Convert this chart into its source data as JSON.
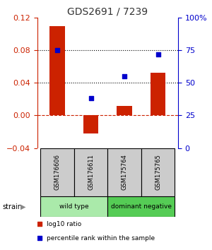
{
  "title": "GDS2691 / 7239",
  "samples": [
    "GSM176606",
    "GSM176611",
    "GSM175764",
    "GSM175765"
  ],
  "log10_ratio": [
    0.109,
    -0.022,
    0.012,
    0.052
  ],
  "percentile_rank": [
    75,
    38,
    55,
    72
  ],
  "ylim_left": [
    -0.04,
    0.12
  ],
  "ylim_right": [
    0,
    100
  ],
  "yticks_left": [
    -0.04,
    0,
    0.04,
    0.08,
    0.12
  ],
  "yticks_right": [
    0,
    25,
    50,
    75,
    100
  ],
  "ytick_labels_right": [
    "0",
    "25",
    "50",
    "75",
    "100%"
  ],
  "hlines_dotted": [
    0.04,
    0.08
  ],
  "hline_dashed": 0,
  "bar_color": "#cc2200",
  "scatter_color": "#0000cc",
  "groups": [
    {
      "label": "wild type",
      "indices": [
        0,
        1
      ],
      "color": "#aaeaaa"
    },
    {
      "label": "dominant negative",
      "indices": [
        2,
        3
      ],
      "color": "#55cc55"
    }
  ],
  "strain_label": "strain",
  "legend_items": [
    {
      "color": "#cc2200",
      "label": "log10 ratio"
    },
    {
      "color": "#0000cc",
      "label": "percentile rank within the sample"
    }
  ],
  "title_color": "#333333",
  "left_axis_color": "#cc2200",
  "right_axis_color": "#0000cc",
  "sample_box_color": "#cccccc",
  "fig_width": 3.0,
  "fig_height": 3.54
}
